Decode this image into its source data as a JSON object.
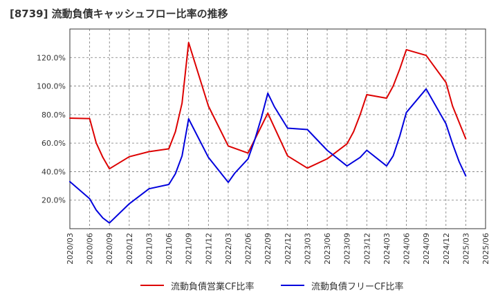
{
  "chart_data": {
    "type": "line",
    "title": "[8739]  流動負債キャッシュフロー比率の推移",
    "x": [
      "2020/03",
      "2020/06",
      "2020/09",
      "2020/12",
      "2021/03",
      "2021/06",
      "2021/09",
      "2021/12",
      "2022/03",
      "2022/06",
      "2022/09",
      "2022/12",
      "2023/03",
      "2023/06",
      "2023/09",
      "2023/12",
      "2024/03",
      "2024/06",
      "2024/09",
      "2024/12",
      "2025/03",
      "2025/06"
    ],
    "xlabel": "",
    "ylabel": "",
    "ylim": [
      0,
      140
    ],
    "yticks": [
      20,
      40,
      60,
      80,
      100,
      120
    ],
    "ytick_labels": [
      "20.0%",
      "40.0%",
      "60.0%",
      "80.0%",
      "100.0%",
      "120.0%"
    ],
    "grid": true,
    "legend_position": "bottom",
    "series": [
      {
        "name": "流動負債営業CF比率",
        "color": "#dd0000",
        "points": [
          [
            "2020/03",
            77.5
          ],
          [
            "2020/06",
            77.2
          ],
          [
            "2020/07",
            60.0
          ],
          [
            "2020/08",
            50.0
          ],
          [
            "2020/09",
            42.0
          ],
          [
            "2020/12",
            50.5
          ],
          [
            "2021/03",
            54.0
          ],
          [
            "2021/06",
            56.0
          ],
          [
            "2021/07",
            68.0
          ],
          [
            "2021/08",
            88.0
          ],
          [
            "2021/09",
            130.5
          ],
          [
            "2021/12",
            86.0
          ],
          [
            "2022/03",
            58.0
          ],
          [
            "2022/06",
            53.0
          ],
          [
            "2022/09",
            81.0
          ],
          [
            "2022/12",
            51.0
          ],
          [
            "2023/03",
            42.5
          ],
          [
            "2023/06",
            49.0
          ],
          [
            "2023/09",
            59.5
          ],
          [
            "2023/10",
            68.0
          ],
          [
            "2023/11",
            80.0
          ],
          [
            "2023/12",
            94.0
          ],
          [
            "2024/03",
            91.5
          ],
          [
            "2024/04",
            100.0
          ],
          [
            "2024/05",
            112.0
          ],
          [
            "2024/06",
            125.5
          ],
          [
            "2024/09",
            121.5
          ],
          [
            "2024/12",
            102.5
          ],
          [
            "2025/01",
            86.0
          ],
          [
            "2025/03",
            63.0
          ]
        ]
      },
      {
        "name": "流動負債フリーCF比率",
        "color": "#0000dd",
        "points": [
          [
            "2020/03",
            33.0
          ],
          [
            "2020/06",
            21.0
          ],
          [
            "2020/07",
            13.0
          ],
          [
            "2020/08",
            7.5
          ],
          [
            "2020/09",
            4.0
          ],
          [
            "2020/12",
            17.5
          ],
          [
            "2021/03",
            28.0
          ],
          [
            "2021/06",
            31.0
          ],
          [
            "2021/07",
            38.5
          ],
          [
            "2021/08",
            51.0
          ],
          [
            "2021/09",
            77.0
          ],
          [
            "2021/12",
            50.0
          ],
          [
            "2022/03",
            32.5
          ],
          [
            "2022/04",
            39.0
          ],
          [
            "2022/06",
            49.0
          ],
          [
            "2022/07",
            62.0
          ],
          [
            "2022/08",
            77.5
          ],
          [
            "2022/09",
            95.0
          ],
          [
            "2022/10",
            85.5
          ],
          [
            "2022/12",
            70.5
          ],
          [
            "2023/03",
            69.5
          ],
          [
            "2023/06",
            55.0
          ],
          [
            "2023/09",
            44.0
          ],
          [
            "2023/11",
            50.0
          ],
          [
            "2023/12",
            55.0
          ],
          [
            "2024/03",
            44.0
          ],
          [
            "2024/04",
            51.0
          ],
          [
            "2024/05",
            65.0
          ],
          [
            "2024/06",
            81.5
          ],
          [
            "2024/09",
            98.0
          ],
          [
            "2024/12",
            73.5
          ],
          [
            "2025/01",
            59.5
          ],
          [
            "2025/02",
            47.0
          ],
          [
            "2025/03",
            37.0
          ]
        ]
      }
    ]
  }
}
